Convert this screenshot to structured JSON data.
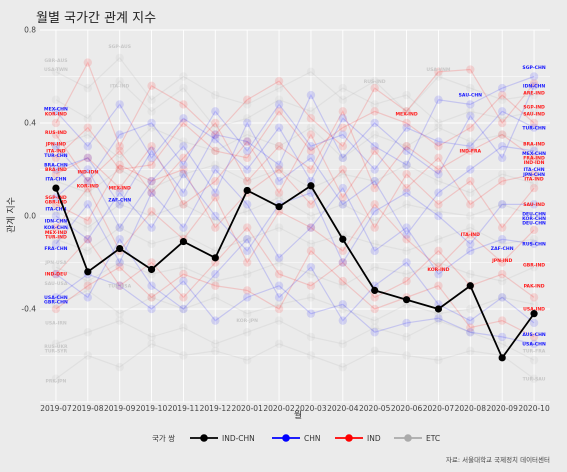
{
  "chart_data": {
    "type": "line",
    "title": "월별 국가간 관계 지수",
    "xlabel": "월",
    "ylabel": "관계 지수",
    "caption": "자료: 서울대학교 국제정치 데이터센터",
    "ylim": [
      -0.8,
      0.8
    ],
    "yticks": [
      "-0.4",
      "0.0",
      "0.4",
      "0.8"
    ],
    "ytick_values": [
      -0.4,
      0.0,
      0.4,
      0.8
    ],
    "grid": true,
    "legend_position": "bottom",
    "legend_title": "국가 쌍",
    "x": [
      "2019-07",
      "2019-08",
      "2019-09",
      "2019-10",
      "2019-11",
      "2019-12",
      "2020-01",
      "2020-02",
      "2020-03",
      "2020-04",
      "2020-05",
      "2020-06",
      "2020-07",
      "2020-08",
      "2020-09",
      "2020-10"
    ],
    "legend": [
      {
        "name": "IND-CHN",
        "color": "#000000"
      },
      {
        "name": "CHN",
        "color": "#0000ff"
      },
      {
        "name": "IND",
        "color": "#ff0000"
      },
      {
        "name": "ETC",
        "color": "#aaaaaa"
      }
    ],
    "series": [
      {
        "name": "IND-CHN",
        "group": "highlight",
        "values": [
          0.12,
          -0.24,
          -0.14,
          -0.23,
          -0.11,
          -0.18,
          0.11,
          0.04,
          0.13,
          -0.1,
          -0.32,
          -0.36,
          -0.4,
          -0.3,
          -0.61,
          -0.42
        ]
      },
      {
        "group": "CHN",
        "values": [
          0.45,
          0.3,
          0.48,
          0.25,
          0.42,
          0.33,
          0.2,
          0.38,
          0.15,
          0.42,
          0.3,
          0.22,
          0.5,
          0.48,
          0.55,
          0.6
        ]
      },
      {
        "group": "CHN",
        "values": [
          0.2,
          0.25,
          0.05,
          0.28,
          0.1,
          0.35,
          0.32,
          0.22,
          0.52,
          0.25,
          0.4,
          0.28,
          0.18,
          0.43,
          0.25,
          0.56
        ]
      },
      {
        "group": "CHN",
        "values": [
          0.0,
          -0.1,
          0.1,
          -0.05,
          0.18,
          0.0,
          -0.15,
          0.05,
          0.1,
          -0.2,
          0.02,
          0.1,
          0.0,
          -0.12,
          0.05,
          0.05
        ]
      },
      {
        "group": "CHN",
        "values": [
          -0.12,
          0.05,
          -0.2,
          0.1,
          -0.05,
          0.2,
          0.05,
          -0.18,
          -0.05,
          0.12,
          -0.15,
          -0.05,
          -0.25,
          -0.15,
          -0.1,
          -0.12
        ]
      },
      {
        "group": "CHN",
        "values": [
          -0.35,
          -0.25,
          -0.3,
          -0.4,
          -0.28,
          -0.45,
          -0.35,
          -0.3,
          -0.42,
          -0.38,
          -0.5,
          -0.46,
          -0.44,
          -0.5,
          -0.52,
          -0.55
        ]
      },
      {
        "group": "CHN",
        "values": [
          0.3,
          0.15,
          0.35,
          0.4,
          0.22,
          0.45,
          0.28,
          0.48,
          0.3,
          0.35,
          0.2,
          0.38,
          0.32,
          0.3,
          0.45,
          0.38
        ]
      },
      {
        "group": "CHN",
        "values": [
          0.08,
          0.2,
          -0.05,
          0.15,
          0.3,
          0.1,
          0.4,
          0.15,
          0.25,
          0.05,
          0.15,
          -0.08,
          0.1,
          0.2,
          0.3,
          0.28
        ]
      },
      {
        "group": "CHN",
        "values": [
          -0.25,
          -0.35,
          -0.1,
          -0.3,
          -0.4,
          -0.25,
          -0.1,
          -0.35,
          -0.22,
          -0.45,
          -0.3,
          -0.2,
          -0.38,
          -0.45,
          -0.35,
          -0.46
        ]
      },
      {
        "group": "IND",
        "values": [
          0.4,
          0.66,
          0.3,
          0.56,
          0.48,
          0.35,
          0.5,
          0.58,
          0.42,
          0.3,
          0.55,
          0.45,
          0.62,
          0.63,
          0.4,
          0.57
        ]
      },
      {
        "group": "IND",
        "values": [
          0.35,
          0.15,
          0.28,
          0.1,
          0.25,
          0.4,
          0.15,
          0.3,
          0.2,
          0.45,
          0.12,
          0.3,
          0.2,
          0.28,
          0.35,
          0.25
        ]
      },
      {
        "group": "IND",
        "values": [
          0.18,
          0.25,
          0.12,
          0.3,
          0.05,
          0.15,
          0.32,
          0.1,
          0.35,
          0.08,
          0.28,
          0.12,
          0.25,
          0.05,
          0.15,
          0.18
        ]
      },
      {
        "group": "IND",
        "values": [
          -0.05,
          0.12,
          -0.15,
          0.02,
          -0.1,
          0.08,
          -0.2,
          0.02,
          -0.05,
          -0.15,
          0.05,
          -0.1,
          -0.22,
          -0.08,
          -0.2,
          -0.06
        ]
      },
      {
        "group": "IND",
        "values": [
          -0.25,
          -0.1,
          -0.3,
          -0.2,
          -0.35,
          -0.2,
          -0.05,
          -0.25,
          -0.3,
          -0.2,
          -0.35,
          -0.28,
          -0.15,
          -0.3,
          -0.25,
          -0.35
        ]
      },
      {
        "group": "IND",
        "values": [
          0.25,
          0.38,
          0.2,
          0.22,
          0.4,
          0.28,
          0.25,
          0.45,
          0.28,
          0.38,
          0.45,
          0.4,
          0.3,
          0.38,
          0.52,
          0.4
        ]
      },
      {
        "group": "IND",
        "values": [
          0.05,
          -0.02,
          0.22,
          0.15,
          0.2,
          -0.05,
          0.1,
          0.2,
          0.05,
          0.2,
          -0.05,
          0.18,
          0.05,
          0.15,
          -0.05,
          0.12
        ]
      },
      {
        "group": "IND",
        "values": [
          -0.4,
          -0.3,
          -0.22,
          -0.35,
          -0.25,
          -0.3,
          -0.32,
          -0.4,
          -0.15,
          -0.28,
          -0.4,
          -0.35,
          -0.3,
          -0.48,
          -0.45,
          -0.52
        ]
      },
      {
        "group": "ETC",
        "values": [
          0.62,
          0.55,
          0.68,
          0.5,
          0.6,
          0.52,
          0.48,
          0.55,
          0.62,
          0.5,
          0.58,
          0.45,
          0.6,
          0.55,
          0.5,
          0.52
        ]
      },
      {
        "group": "ETC",
        "values": [
          0.5,
          0.42,
          0.58,
          0.45,
          0.55,
          0.38,
          0.42,
          0.5,
          0.45,
          0.55,
          0.48,
          0.52,
          0.4,
          0.45,
          0.42,
          0.45
        ]
      },
      {
        "group": "ETC",
        "values": [
          0.3,
          0.35,
          0.25,
          0.38,
          0.32,
          0.28,
          0.35,
          0.3,
          0.38,
          0.25,
          0.35,
          0.3,
          0.38,
          0.32,
          0.35,
          0.3
        ]
      },
      {
        "group": "ETC",
        "values": [
          0.15,
          0.1,
          0.2,
          0.12,
          0.18,
          0.22,
          0.15,
          0.2,
          0.12,
          0.18,
          0.15,
          0.22,
          0.15,
          0.1,
          0.18,
          0.14
        ]
      },
      {
        "group": "ETC",
        "values": [
          0.02,
          -0.05,
          0.05,
          0.0,
          0.05,
          -0.02,
          0.02,
          0.08,
          0.0,
          0.05,
          -0.02,
          0.05,
          0.02,
          0.0,
          0.05,
          0.0
        ]
      },
      {
        "group": "ETC",
        "values": [
          -0.1,
          -0.15,
          -0.05,
          -0.12,
          -0.08,
          -0.15,
          -0.1,
          -0.05,
          -0.12,
          -0.08,
          -0.12,
          -0.15,
          -0.1,
          -0.05,
          -0.12,
          -0.1
        ]
      },
      {
        "group": "ETC",
        "values": [
          -0.22,
          -0.28,
          -0.2,
          -0.25,
          -0.22,
          -0.28,
          -0.25,
          -0.2,
          -0.25,
          -0.3,
          -0.22,
          -0.25,
          -0.2,
          -0.25,
          -0.28,
          -0.22
        ]
      },
      {
        "group": "ETC",
        "values": [
          -0.38,
          -0.32,
          -0.42,
          -0.35,
          -0.4,
          -0.35,
          -0.42,
          -0.38,
          -0.35,
          -0.4,
          -0.45,
          -0.38,
          -0.42,
          -0.4,
          -0.35,
          -0.38
        ]
      },
      {
        "group": "ETC",
        "values": [
          -0.55,
          -0.5,
          -0.45,
          -0.52,
          -0.48,
          -0.55,
          -0.5,
          -0.45,
          -0.52,
          -0.55,
          -0.48,
          -0.52,
          -0.45,
          -0.5,
          -0.55,
          -0.62
        ]
      },
      {
        "group": "ETC",
        "values": [
          -0.7,
          -0.6,
          -0.65,
          -0.55,
          -0.6,
          -0.58,
          -0.62,
          -0.55,
          -0.6,
          -0.65,
          -0.58,
          -0.6,
          -0.62,
          -0.58,
          -0.6,
          -0.7
        ]
      }
    ],
    "point_labels": [
      {
        "text": "GBR-AUS",
        "group": "ETC",
        "x": "2019-07",
        "y": 0.67
      },
      {
        "text": "USA-TWN",
        "group": "ETC",
        "x": "2019-07",
        "y": 0.63
      },
      {
        "text": "MEX-CHN",
        "group": "CHN",
        "x": "2019-07",
        "y": 0.46
      },
      {
        "text": "KOR-IND",
        "group": "IND",
        "x": "2019-07",
        "y": 0.44
      },
      {
        "text": "RUS-IND",
        "group": "IND",
        "x": "2019-07",
        "y": 0.36
      },
      {
        "text": "JPN-IND",
        "group": "IND",
        "x": "2019-07",
        "y": 0.31
      },
      {
        "text": "ITA-IND",
        "group": "IND",
        "x": "2019-07",
        "y": 0.28
      },
      {
        "text": "TUR-CHN",
        "group": "CHN",
        "x": "2019-07",
        "y": 0.26
      },
      {
        "text": "BRA-CHN",
        "group": "CHN",
        "x": "2019-07",
        "y": 0.22
      },
      {
        "text": "BRA-IND",
        "group": "IND",
        "x": "2019-07",
        "y": 0.2
      },
      {
        "text": "ITA-CHN",
        "group": "CHN",
        "x": "2019-07",
        "y": 0.16
      },
      {
        "text": "SGP-IND",
        "group": "IND",
        "x": "2019-07",
        "y": 0.08
      },
      {
        "text": "GBR-IND",
        "group": "IND",
        "x": "2019-07",
        "y": 0.06
      },
      {
        "text": "ITA-CHN",
        "group": "CHN",
        "x": "2019-07",
        "y": 0.03
      },
      {
        "text": "IDN-CHN",
        "group": "CHN",
        "x": "2019-07",
        "y": -0.02
      },
      {
        "text": "KOR-CHN",
        "group": "CHN",
        "x": "2019-07",
        "y": -0.05
      },
      {
        "text": "MEX-IND",
        "group": "IND",
        "x": "2019-07",
        "y": -0.07
      },
      {
        "text": "TUR-IND",
        "group": "IND",
        "x": "2019-07",
        "y": -0.09
      },
      {
        "text": "FRA-CHN",
        "group": "CHN",
        "x": "2019-07",
        "y": -0.14
      },
      {
        "text": "JPN-USA",
        "group": "ETC",
        "x": "2019-07",
        "y": -0.2
      },
      {
        "text": "IND-DEU",
        "group": "IND",
        "x": "2019-07",
        "y": -0.25
      },
      {
        "text": "SAU-USA",
        "group": "ETC",
        "x": "2019-07",
        "y": -0.29
      },
      {
        "text": "USA-CHN",
        "group": "CHN",
        "x": "2019-07",
        "y": -0.35
      },
      {
        "text": "GBR-CHN",
        "group": "CHN",
        "x": "2019-07",
        "y": -0.37
      },
      {
        "text": "USA-IRN",
        "group": "ETC",
        "x": "2019-07",
        "y": -0.46
      },
      {
        "text": "RUS-UKR",
        "group": "ETC",
        "x": "2019-07",
        "y": -0.56
      },
      {
        "text": "TUR-SYR",
        "group": "ETC",
        "x": "2019-07",
        "y": -0.58
      },
      {
        "text": "PRK-JPN",
        "group": "ETC",
        "x": "2019-07",
        "y": -0.71
      },
      {
        "text": "KOR-IND",
        "group": "IND",
        "x": "2019-08",
        "y": 0.13
      },
      {
        "text": "IND-IDN",
        "group": "IND",
        "x": "2019-08",
        "y": 0.19
      },
      {
        "text": "MEX-IND",
        "group": "IND",
        "x": "2019-09",
        "y": 0.12
      },
      {
        "text": "ZAF-CHN",
        "group": "CHN",
        "x": "2019-09",
        "y": 0.07
      },
      {
        "text": "SGP-AUS",
        "group": "ETC",
        "x": "2019-09",
        "y": 0.73
      },
      {
        "text": "ITA-IND",
        "group": "ETC",
        "x": "2019-09",
        "y": 0.56
      },
      {
        "text": "TUR-USA",
        "group": "ETC",
        "x": "2019-09",
        "y": -0.3
      },
      {
        "text": "KOR-JPN",
        "group": "ETC",
        "x": "2020-01",
        "y": -0.45
      },
      {
        "text": "RUS-IND",
        "group": "ETC",
        "x": "2020-05",
        "y": 0.58
      },
      {
        "text": "MEX-IND",
        "group": "IND",
        "x": "2020-06",
        "y": 0.44
      },
      {
        "text": "USA-VNM",
        "group": "ETC",
        "x": "2020-07",
        "y": 0.63
      },
      {
        "text": "KOR-IND",
        "group": "IND",
        "x": "2020-07",
        "y": -0.23
      },
      {
        "text": "SAU-CHN",
        "group": "CHN",
        "x": "2020-08",
        "y": 0.52
      },
      {
        "text": "IND-FRA",
        "group": "IND",
        "x": "2020-08",
        "y": 0.28
      },
      {
        "text": "ITA-IND",
        "group": "IND",
        "x": "2020-08",
        "y": -0.08
      },
      {
        "text": "ZAF-CHN",
        "group": "CHN",
        "x": "2020-09",
        "y": -0.14
      },
      {
        "text": "JPN-IND",
        "group": "IND",
        "x": "2020-09",
        "y": -0.19
      },
      {
        "text": "SGP-CHN",
        "group": "CHN",
        "x": "2020-10",
        "y": 0.64
      },
      {
        "text": "IDN-CHN",
        "group": "CHN",
        "x": "2020-10",
        "y": 0.56
      },
      {
        "text": "ARE-IND",
        "group": "IND",
        "x": "2020-10",
        "y": 0.53
      },
      {
        "text": "SGP-IND",
        "group": "IND",
        "x": "2020-10",
        "y": 0.47
      },
      {
        "text": "SAU-IND",
        "group": "IND",
        "x": "2020-10",
        "y": 0.44
      },
      {
        "text": "TUR-CHN",
        "group": "CHN",
        "x": "2020-10",
        "y": 0.38
      },
      {
        "text": "BRA-IND",
        "group": "IND",
        "x": "2020-10",
        "y": 0.31
      },
      {
        "text": "MEX-CHN",
        "group": "CHN",
        "x": "2020-10",
        "y": 0.27
      },
      {
        "text": "FRA-IND",
        "group": "IND",
        "x": "2020-10",
        "y": 0.25
      },
      {
        "text": "IND-IDN",
        "group": "IND",
        "x": "2020-10",
        "y": 0.23
      },
      {
        "text": "ITA-CHN",
        "group": "CHN",
        "x": "2020-10",
        "y": 0.2
      },
      {
        "text": "JPN-CHN",
        "group": "CHN",
        "x": "2020-10",
        "y": 0.18
      },
      {
        "text": "ITA-IND",
        "group": "IND",
        "x": "2020-10",
        "y": 0.16
      },
      {
        "text": "SAU-IND",
        "group": "IND",
        "x": "2020-10",
        "y": 0.05
      },
      {
        "text": "DEU-CHN",
        "group": "CHN",
        "x": "2020-10",
        "y": 0.01
      },
      {
        "text": "KOR-CHN",
        "group": "CHN",
        "x": "2020-10",
        "y": -0.01
      },
      {
        "text": "DEU-CHN",
        "group": "CHN",
        "x": "2020-10",
        "y": -0.03
      },
      {
        "text": "RUS-CHN",
        "group": "CHN",
        "x": "2020-10",
        "y": -0.12
      },
      {
        "text": "GBR-IND",
        "group": "IND",
        "x": "2020-10",
        "y": -0.21
      },
      {
        "text": "PAK-IND",
        "group": "IND",
        "x": "2020-10",
        "y": -0.3
      },
      {
        "text": "USA-IND",
        "group": "IND",
        "x": "2020-10",
        "y": -0.4
      },
      {
        "text": "AUS-CHN",
        "group": "CHN",
        "x": "2020-10",
        "y": -0.51
      },
      {
        "text": "USA-CHN",
        "group": "CHN",
        "x": "2020-10",
        "y": -0.55
      },
      {
        "text": "TUR-FRA",
        "group": "ETC",
        "x": "2020-10",
        "y": -0.58
      },
      {
        "text": "TUR-SAU",
        "group": "ETC",
        "x": "2020-10",
        "y": -0.7
      }
    ]
  }
}
